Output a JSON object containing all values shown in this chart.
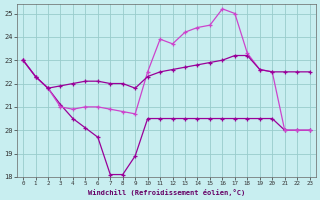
{
  "background_color": "#c8eef0",
  "grid_color": "#99cccc",
  "line_color_dark": "#990099",
  "line_color_light": "#cc44cc",
  "xlim": [
    -0.5,
    23.5
  ],
  "ylim": [
    18,
    25.4
  ],
  "xlabel": "Windchill (Refroidissement éolien,°C)",
  "xticks": [
    0,
    1,
    2,
    3,
    4,
    5,
    6,
    7,
    8,
    9,
    10,
    11,
    12,
    13,
    14,
    15,
    16,
    17,
    18,
    19,
    20,
    21,
    22,
    23
  ],
  "yticks": [
    18,
    19,
    20,
    21,
    22,
    23,
    24,
    25
  ],
  "series1_x": [
    0,
    1,
    2,
    3,
    4,
    5,
    6,
    7,
    8,
    9,
    10,
    11,
    12,
    13,
    14,
    15,
    16,
    17,
    18,
    19,
    20,
    21,
    22,
    23
  ],
  "series1_y": [
    23.0,
    22.3,
    21.8,
    21.1,
    20.5,
    20.1,
    19.7,
    18.1,
    18.1,
    18.9,
    20.5,
    20.5,
    20.5,
    20.5,
    20.5,
    20.5,
    20.5,
    20.5,
    20.5,
    20.5,
    20.5,
    20.0,
    20.0,
    20.0
  ],
  "series2_x": [
    0,
    1,
    2,
    3,
    4,
    5,
    6,
    7,
    8,
    9,
    10,
    11,
    12,
    13,
    14,
    15,
    16,
    17,
    18,
    19,
    20,
    21,
    22,
    23
  ],
  "series2_y": [
    23.0,
    22.3,
    21.8,
    21.0,
    20.9,
    21.0,
    21.0,
    20.9,
    20.8,
    20.7,
    22.5,
    23.9,
    23.7,
    24.2,
    24.4,
    24.5,
    25.2,
    25.0,
    23.3,
    22.6,
    22.5,
    20.0,
    20.0,
    20.0
  ],
  "series3_x": [
    0,
    1,
    2,
    3,
    4,
    5,
    6,
    7,
    8,
    9,
    10,
    11,
    12,
    13,
    14,
    15,
    16,
    17,
    18,
    19,
    20,
    21,
    22,
    23
  ],
  "series3_y": [
    23.0,
    22.3,
    21.8,
    21.9,
    22.0,
    22.1,
    22.1,
    22.0,
    22.0,
    21.8,
    22.3,
    22.5,
    22.6,
    22.7,
    22.8,
    22.9,
    23.0,
    23.2,
    23.2,
    22.6,
    22.5,
    22.5,
    22.5,
    22.5
  ]
}
